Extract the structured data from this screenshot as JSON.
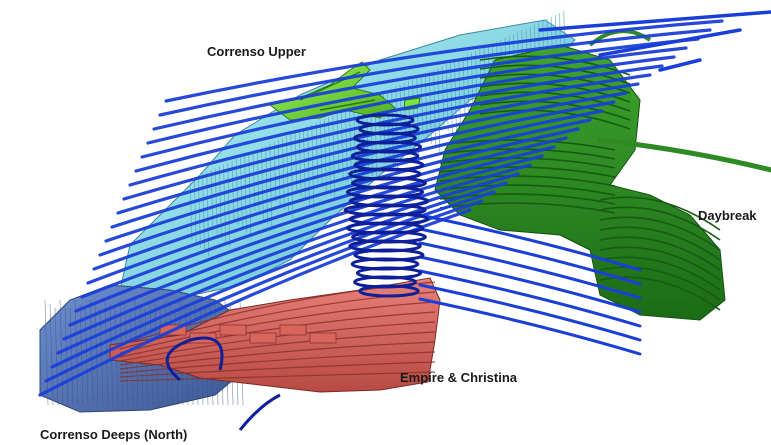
{
  "labels": {
    "correnso_upper": "Correnso Upper",
    "daybreak": "Daybreak",
    "empire_christina": "Empire & Christina",
    "correnso_deeps": "Correnso Deeps (North)"
  },
  "colors": {
    "tunnel": "#1a3fd8",
    "tunnel_dark": "#0d1f99",
    "stope_cyan": "#8fe3ef",
    "stope_cyan_dark": "#4a9fb5",
    "stope_deeps": "#5877b8",
    "stope_deeps_dark": "#3c558c",
    "correnso_upper": "#7ae63a",
    "correnso_upper_dark": "#3d9a14",
    "daybreak": "#2e8b23",
    "daybreak_dark": "#165c12",
    "empire": "#d9665c",
    "empire_dark": "#8c302b"
  }
}
